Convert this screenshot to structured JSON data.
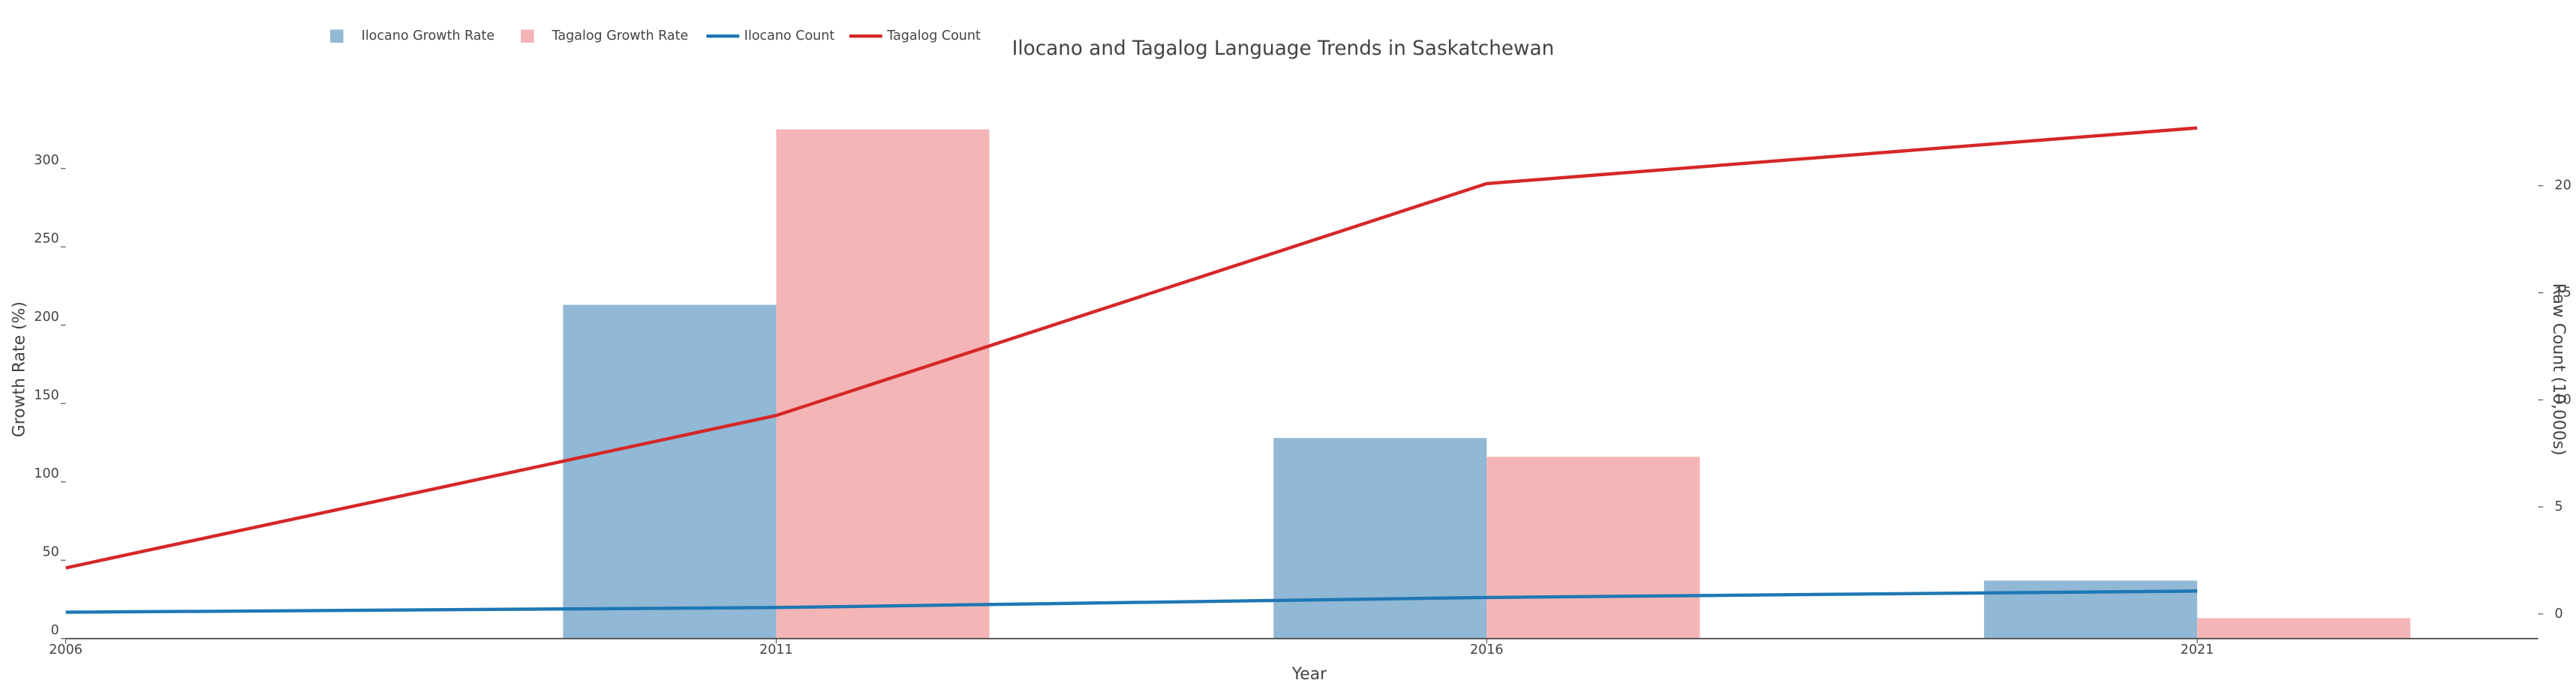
{
  "chart_data": {
    "type": "bar-line",
    "title": "Ilocano and Tagalog Language Trends in Saskatchewan",
    "x_label": "Year",
    "y_label": "Growth Rate (%)",
    "y2_label": "Raw Count (10,000s)",
    "x": [
      2006,
      2011,
      2016,
      2021
    ],
    "xlim": [
      2006,
      2023.4
    ],
    "xticks": [
      2006,
      2011,
      2016,
      2021
    ],
    "ylim": [
      0,
      330
    ],
    "yticks": [
      0,
      50,
      100,
      150,
      200,
      250,
      300
    ],
    "y2lim": [
      -1.15,
      23
    ],
    "y2ticks": [
      0,
      5,
      10,
      15,
      20
    ],
    "series": [
      {
        "name": "Ilocano Growth Rate",
        "type": "bar",
        "color": "#91b8d5",
        "values": [
          null,
          213,
          128,
          37
        ]
      },
      {
        "name": "Tagalog Growth Rate",
        "type": "bar",
        "color": "#f4b5b6",
        "values": [
          null,
          325,
          116,
          13
        ]
      },
      {
        "name": "Ilocano Count",
        "type": "line",
        "axis": "y2",
        "color": "#1f77b4",
        "values": [
          0.08,
          0.3,
          0.77,
          1.07
        ]
      },
      {
        "name": "Tagalog Count",
        "type": "line",
        "axis": "y2",
        "color": "#d62728",
        "values": [
          2.15,
          9.27,
          20.1,
          22.7
        ]
      }
    ]
  }
}
